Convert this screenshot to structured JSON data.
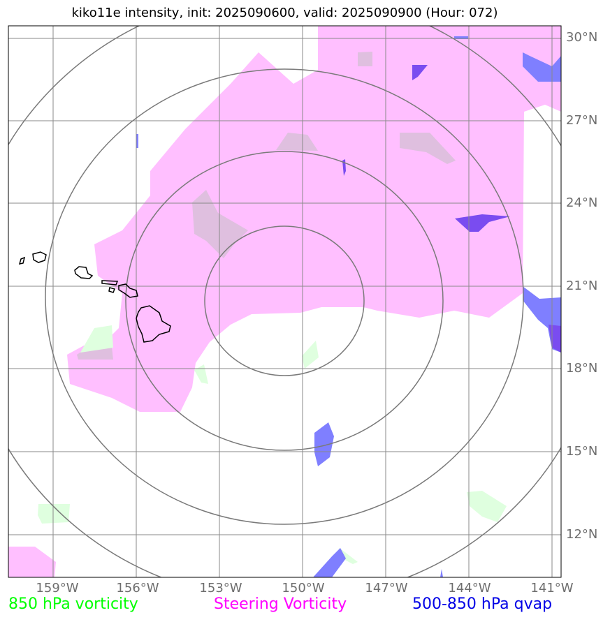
{
  "title": "kiko11e intensity, init: 2025090600, valid: 2025090900 (Hour: 072)",
  "lat_labels": [
    "30°N",
    "27°N",
    "24°N",
    "21°N",
    "18°N",
    "15°N",
    "12°N"
  ],
  "lon_labels": [
    "159°W",
    "156°W",
    "153°W",
    "150°W",
    "147°W",
    "144°W",
    "141°W"
  ],
  "legend": {
    "vort850": {
      "label": "850 hPa vorticity",
      "color": "#00ff00"
    },
    "steering": {
      "label": "Steering Vorticity",
      "color": "#ff00ff"
    },
    "qvap": {
      "label": "500-850 hPa qvap",
      "color": "#0000e6"
    }
  },
  "colors": {
    "steering_fill": "#ffbfff",
    "vort850_fill": "#dfffdf",
    "qvap_fill": "#7f7fff",
    "qvap_dark": "#7a4cf0",
    "overlap_fill": "#dfbfdf",
    "gridline": "#8a8a8a",
    "range_ring": "#7a7a7a",
    "coastline": "#000000"
  }
}
